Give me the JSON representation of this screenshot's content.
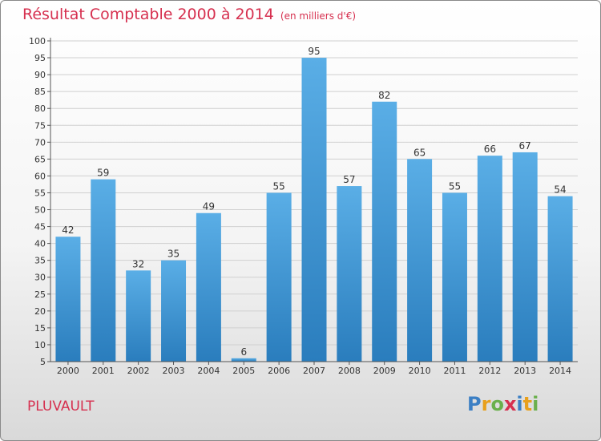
{
  "chart_data": {
    "type": "bar",
    "title": "Résultat Comptable 2000 à 2014",
    "subtitle": "(en milliers d'€)",
    "categories": [
      "2000",
      "2001",
      "2002",
      "2003",
      "2004",
      "2005",
      "2006",
      "2007",
      "2008",
      "2009",
      "2010",
      "2011",
      "2012",
      "2013",
      "2014"
    ],
    "values": [
      42,
      59,
      32,
      35,
      49,
      6,
      55,
      95,
      57,
      82,
      65,
      55,
      66,
      67,
      54
    ],
    "ylim": [
      5,
      100
    ],
    "yticks": [
      5,
      10,
      15,
      20,
      25,
      30,
      35,
      40,
      45,
      50,
      55,
      60,
      65,
      70,
      75,
      80,
      85,
      90,
      95,
      100
    ],
    "grid": true,
    "bar_color_top": "#5aaee6",
    "bar_color_bottom": "#2a7dbd"
  },
  "place": "PLUVAULT",
  "logo": {
    "letters": [
      "P",
      "r",
      "o",
      "x",
      "i",
      "t",
      "i"
    ],
    "colors": [
      "#3b7fc4",
      "#e8a01c",
      "#6ab04c",
      "#d6304f",
      "#3b7fc4",
      "#e8a01c",
      "#6ab04c"
    ]
  },
  "colors": {
    "title": "#d6304f",
    "grid": "#d0d0d0",
    "axis": "#555555"
  }
}
